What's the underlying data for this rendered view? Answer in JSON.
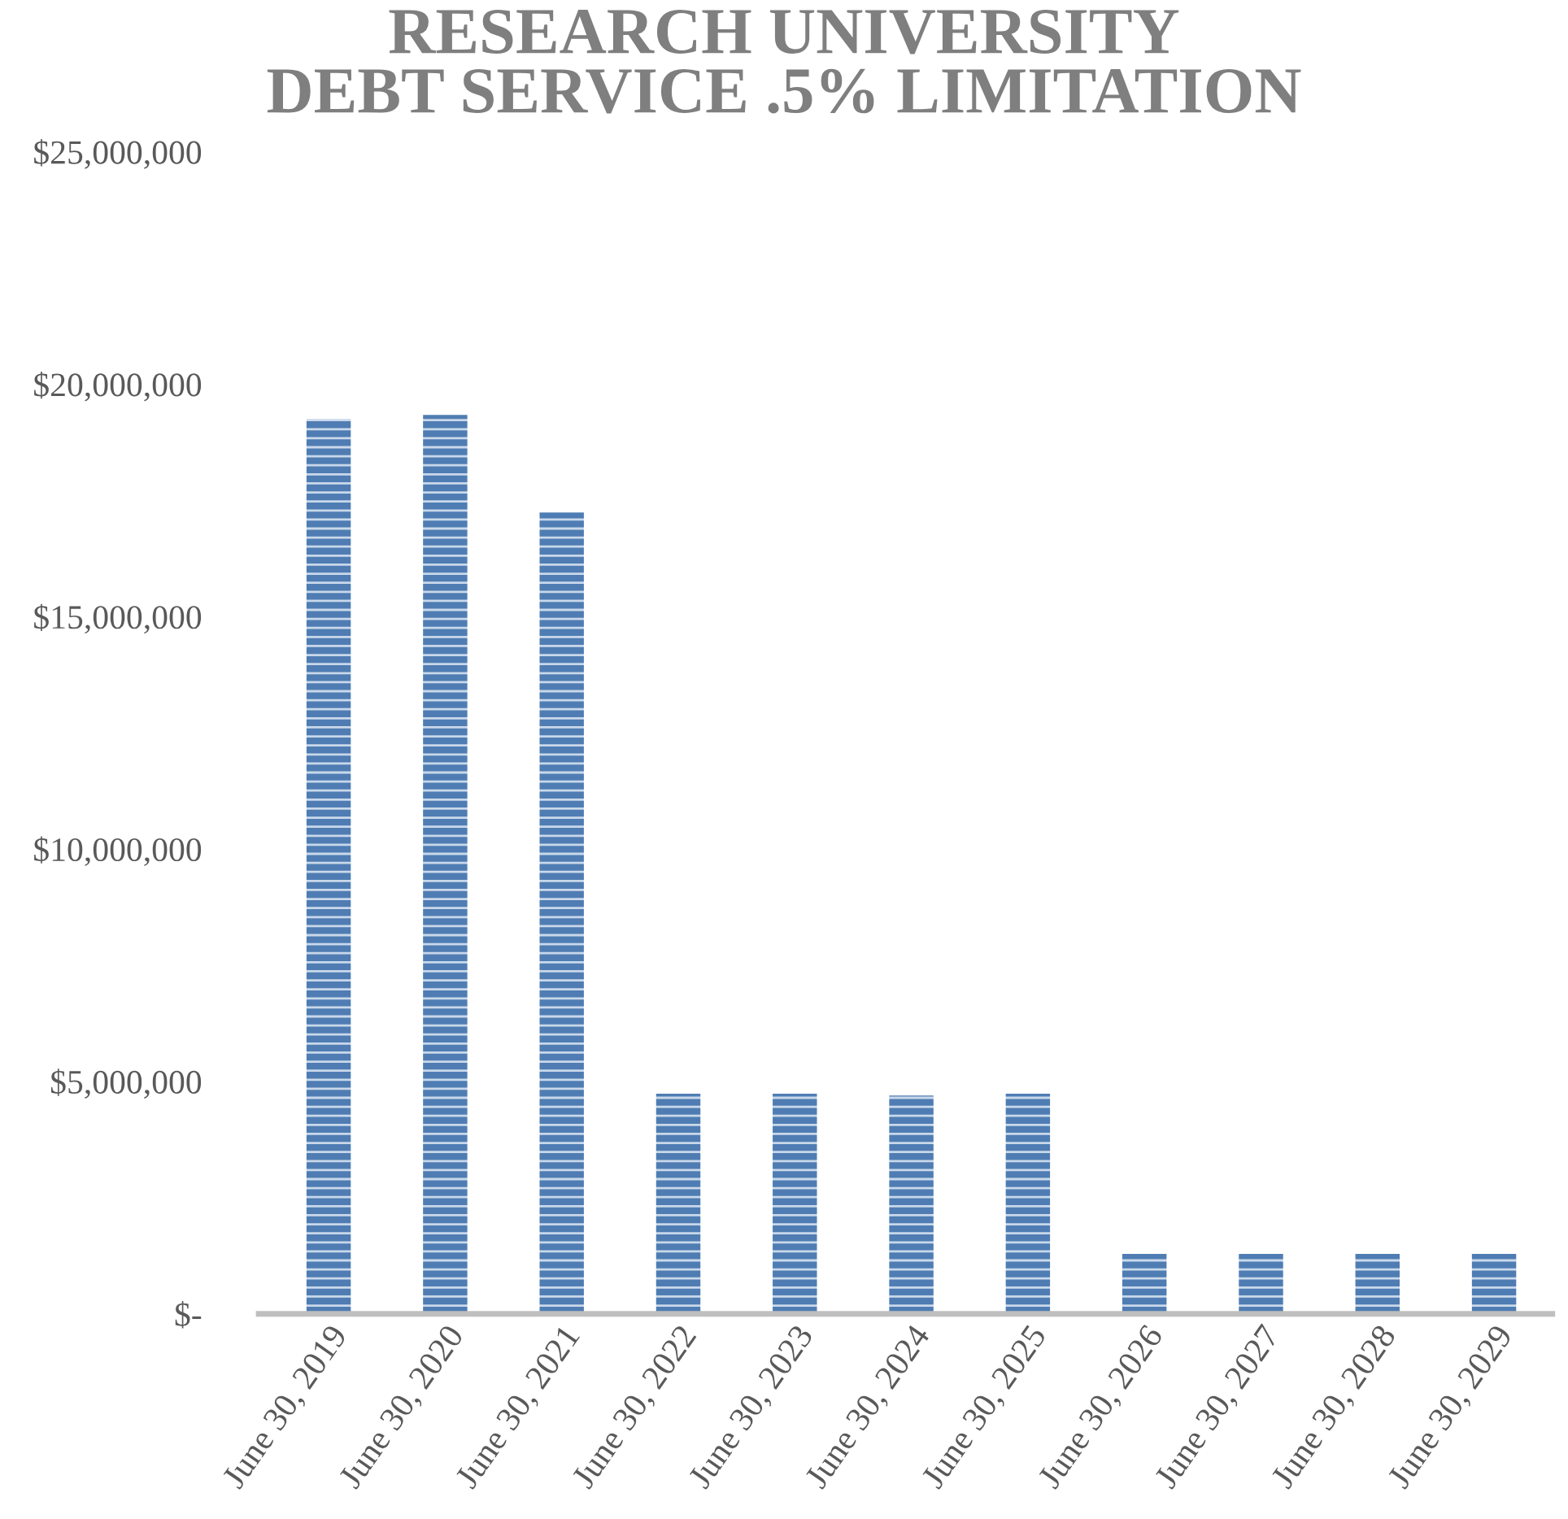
{
  "chart_data": {
    "type": "bar",
    "title": "RESEARCH UNIVERSITY\nDEBT SERVICE .5% LIMITATION",
    "categories": [
      "June 30, 2019",
      "June 30, 2020",
      "June 30, 2021",
      "June 30, 2022",
      "June 30, 2023",
      "June 30, 2024",
      "June 30, 2025",
      "June 30, 2026",
      "June 30, 2027",
      "June 30, 2028",
      "June 30, 2029"
    ],
    "values": [
      19250000,
      19340000,
      17240000,
      4740000,
      4740000,
      4700000,
      4740000,
      1290000,
      1290000,
      1290000,
      1290000
    ],
    "color": "#4f7db3",
    "ylim": [
      0,
      25000000
    ],
    "yticks": [
      {
        "value": 0,
        "label": "$-"
      },
      {
        "value": 5000000,
        "label": "$5,000,000"
      },
      {
        "value": 10000000,
        "label": "$10,000,000"
      },
      {
        "value": 15000000,
        "label": "$15,000,000"
      },
      {
        "value": 20000000,
        "label": "$20,000,000"
      },
      {
        "value": 25000000,
        "label": "$25,000,000"
      }
    ],
    "grid": false,
    "legend": false
  }
}
